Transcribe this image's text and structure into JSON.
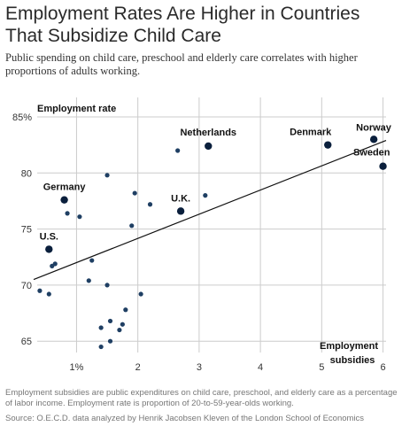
{
  "title": "Employment Rates Are Higher in Countries That Subsidize Child Care",
  "subtitle": "Public spending on child care, preschool and elderly care correlates with higher proportions of adults working.",
  "note": "Employment subsidies are public expenditures on child care, preschool, and elderly care as a percentage of labor income. Employment rate is proportion of 20-to-59-year-olds working.",
  "source": "Source: O.E.C.D. data analyzed by Henrik Jacobsen Kleven of the London School of Economics",
  "colors": {
    "point": "#1f3f63",
    "highlight": "#0a1f3c",
    "grid": "#cccccc",
    "line": "#111111"
  },
  "chart_data": {
    "type": "scatter",
    "ylabel": "Employment rate",
    "xlabel": "Employment subsidies",
    "xlim": [
      0.3,
      6.05
    ],
    "ylim": [
      63.2,
      86.5
    ],
    "x_ticks": [
      "1%",
      "2",
      "3",
      "4",
      "5",
      "6"
    ],
    "y_ticks": [
      "85%",
      "80",
      "75",
      "70",
      "65"
    ],
    "grid": true,
    "trend_line": {
      "x": [
        0.3,
        6.05
      ],
      "y": [
        70.5,
        82.9
      ]
    },
    "points": [
      {
        "x": 0.8,
        "y": 77.6,
        "label": "Germany",
        "highlight": true
      },
      {
        "x": 0.55,
        "y": 73.2,
        "label": "U.S.",
        "highlight": true
      },
      {
        "x": 2.7,
        "y": 76.6,
        "label": "U.K.",
        "highlight": true
      },
      {
        "x": 3.15,
        "y": 82.4,
        "label": "Netherlands",
        "highlight": true
      },
      {
        "x": 5.1,
        "y": 82.5,
        "label": "Denmark",
        "highlight": true
      },
      {
        "x": 5.85,
        "y": 83.0,
        "label": "Norway",
        "highlight": true
      },
      {
        "x": 6.0,
        "y": 80.6,
        "label": "Sweden",
        "highlight": true
      },
      {
        "x": 2.65,
        "y": 82.0
      },
      {
        "x": 1.5,
        "y": 79.8
      },
      {
        "x": 1.95,
        "y": 78.2
      },
      {
        "x": 3.1,
        "y": 78.0
      },
      {
        "x": 0.85,
        "y": 76.4
      },
      {
        "x": 1.05,
        "y": 76.1
      },
      {
        "x": 2.2,
        "y": 77.2
      },
      {
        "x": 1.9,
        "y": 75.3
      },
      {
        "x": 0.65,
        "y": 71.9
      },
      {
        "x": 0.6,
        "y": 71.7
      },
      {
        "x": 1.25,
        "y": 72.2
      },
      {
        "x": 1.2,
        "y": 70.4
      },
      {
        "x": 1.5,
        "y": 70.0
      },
      {
        "x": 0.4,
        "y": 69.5
      },
      {
        "x": 0.55,
        "y": 69.2
      },
      {
        "x": 2.05,
        "y": 69.2
      },
      {
        "x": 1.8,
        "y": 67.8
      },
      {
        "x": 1.55,
        "y": 66.8
      },
      {
        "x": 1.4,
        "y": 66.2
      },
      {
        "x": 1.75,
        "y": 66.5
      },
      {
        "x": 1.7,
        "y": 66.0
      },
      {
        "x": 1.55,
        "y": 65.0
      },
      {
        "x": 1.4,
        "y": 64.5
      }
    ]
  }
}
